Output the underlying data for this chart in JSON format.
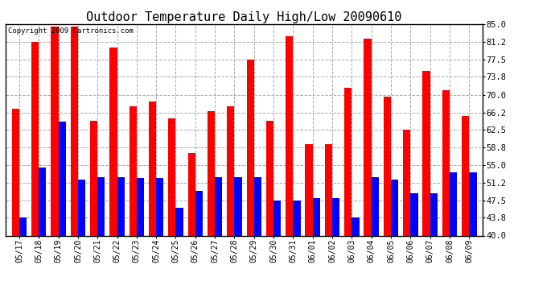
{
  "title": "Outdoor Temperature Daily High/Low 20090610",
  "copyright": "Copyright 2009 Cartronics.com",
  "dates": [
    "05/17",
    "05/18",
    "05/19",
    "05/20",
    "05/21",
    "05/22",
    "05/23",
    "05/24",
    "05/25",
    "05/26",
    "05/27",
    "05/28",
    "05/29",
    "05/30",
    "05/31",
    "06/01",
    "06/02",
    "06/03",
    "06/04",
    "06/05",
    "06/06",
    "06/07",
    "06/08",
    "06/09"
  ],
  "highs": [
    67.0,
    81.2,
    84.5,
    84.5,
    64.5,
    80.0,
    67.5,
    68.5,
    65.0,
    57.5,
    66.5,
    67.5,
    77.5,
    64.5,
    82.5,
    59.5,
    59.5,
    71.5,
    82.0,
    69.5,
    62.5,
    75.0,
    71.0,
    65.5
  ],
  "lows": [
    43.8,
    54.5,
    64.2,
    52.0,
    52.5,
    52.5,
    52.2,
    52.2,
    46.0,
    49.5,
    52.5,
    52.5,
    52.5,
    47.5,
    47.5,
    48.0,
    48.0,
    43.8,
    52.5,
    52.0,
    49.0,
    49.0,
    53.5,
    53.5
  ],
  "high_color": "#ff0000",
  "low_color": "#0000ff",
  "bg_color": "#ffffff",
  "plot_bg_color": "#ffffff",
  "grid_color": "#aaaaaa",
  "yticks": [
    40.0,
    43.8,
    47.5,
    51.2,
    55.0,
    58.8,
    62.5,
    66.2,
    70.0,
    73.8,
    77.5,
    81.2,
    85.0
  ],
  "ylim": [
    40.0,
    85.0
  ],
  "bar_width": 0.38,
  "title_fontsize": 11
}
